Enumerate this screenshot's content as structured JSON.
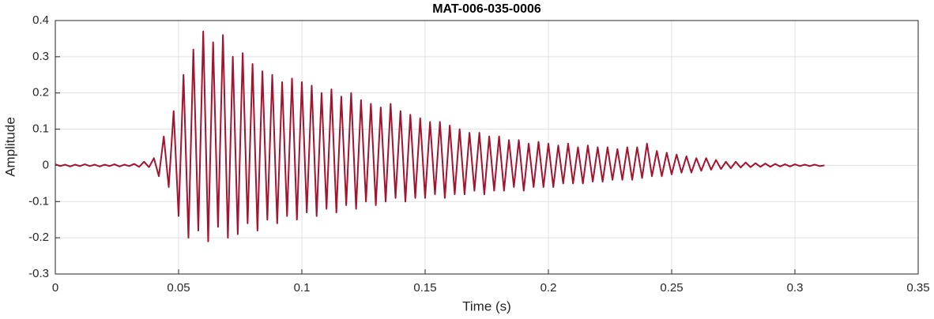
{
  "chart_data": {
    "type": "line",
    "title": "MAT-006-035-0006",
    "x_label": "Time (s)",
    "y_label": "Amplitude",
    "color": "#a2142f",
    "grid": true,
    "xlim": [
      0,
      0.35
    ],
    "xticks": [
      0,
      0.05,
      0.1,
      0.15,
      0.2,
      0.25,
      0.3,
      0.35
    ],
    "ylim": [
      -0.3,
      0.4
    ],
    "yticks": [
      -0.3,
      -0.2,
      -0.1,
      0,
      0.1,
      0.2,
      0.3,
      0.4
    ],
    "x": [
      0,
      0.002,
      0.004,
      0.006,
      0.008,
      0.01,
      0.012,
      0.014,
      0.016,
      0.018,
      0.02,
      0.022,
      0.024,
      0.026,
      0.028,
      0.03,
      0.032,
      0.034,
      0.036,
      0.038,
      0.04,
      0.042,
      0.044,
      0.046,
      0.048,
      0.05,
      0.052,
      0.054,
      0.056,
      0.058,
      0.06,
      0.062,
      0.064,
      0.066,
      0.068,
      0.07,
      0.072,
      0.074,
      0.076,
      0.078,
      0.08,
      0.082,
      0.084,
      0.086,
      0.088,
      0.09,
      0.092,
      0.094,
      0.096,
      0.098,
      0.1,
      0.102,
      0.104,
      0.106,
      0.108,
      0.11,
      0.112,
      0.114,
      0.116,
      0.118,
      0.12,
      0.122,
      0.124,
      0.126,
      0.128,
      0.13,
      0.132,
      0.134,
      0.136,
      0.138,
      0.14,
      0.142,
      0.144,
      0.146,
      0.148,
      0.15,
      0.152,
      0.154,
      0.156,
      0.158,
      0.16,
      0.162,
      0.164,
      0.166,
      0.168,
      0.17,
      0.172,
      0.174,
      0.176,
      0.178,
      0.18,
      0.182,
      0.184,
      0.186,
      0.188,
      0.19,
      0.192,
      0.194,
      0.196,
      0.198,
      0.2,
      0.202,
      0.204,
      0.206,
      0.208,
      0.21,
      0.212,
      0.214,
      0.216,
      0.218,
      0.22,
      0.222,
      0.224,
      0.226,
      0.228,
      0.23,
      0.232,
      0.234,
      0.236,
      0.238,
      0.24,
      0.242,
      0.244,
      0.246,
      0.248,
      0.25,
      0.252,
      0.254,
      0.256,
      0.258,
      0.26,
      0.262,
      0.264,
      0.266,
      0.268,
      0.27,
      0.272,
      0.274,
      0.276,
      0.278,
      0.28,
      0.282,
      0.284,
      0.286,
      0.288,
      0.29,
      0.292,
      0.294,
      0.296,
      0.298,
      0.3,
      0.302,
      0.304,
      0.306,
      0.308,
      0.31,
      0.312
    ],
    "values": [
      0.003,
      -0.002,
      0.002,
      -0.003,
      0.002,
      -0.002,
      0.003,
      -0.002,
      0.002,
      -0.003,
      0.002,
      -0.002,
      0.003,
      -0.003,
      0.002,
      -0.002,
      0.004,
      -0.004,
      0.01,
      -0.005,
      0.02,
      -0.03,
      0.08,
      -0.06,
      0.15,
      -0.14,
      0.25,
      -0.2,
      0.32,
      -0.18,
      0.37,
      -0.21,
      0.34,
      -0.17,
      0.36,
      -0.2,
      0.3,
      -0.19,
      0.31,
      -0.16,
      0.28,
      -0.18,
      0.26,
      -0.15,
      0.25,
      -0.16,
      0.23,
      -0.14,
      0.24,
      -0.15,
      0.23,
      -0.13,
      0.22,
      -0.14,
      0.2,
      -0.12,
      0.21,
      -0.13,
      0.19,
      -0.11,
      0.2,
      -0.12,
      0.18,
      -0.1,
      0.17,
      -0.11,
      0.16,
      -0.1,
      0.17,
      -0.09,
      0.15,
      -0.1,
      0.14,
      -0.09,
      0.13,
      -0.09,
      0.12,
      -0.08,
      0.12,
      -0.09,
      0.11,
      -0.08,
      0.1,
      -0.08,
      0.09,
      -0.07,
      0.09,
      -0.08,
      0.08,
      -0.07,
      0.08,
      -0.07,
      0.07,
      -0.06,
      0.07,
      -0.07,
      0.06,
      -0.06,
      0.065,
      -0.06,
      0.06,
      -0.06,
      0.055,
      -0.05,
      0.06,
      -0.05,
      0.05,
      -0.05,
      0.055,
      -0.045,
      0.05,
      -0.045,
      0.05,
      -0.04,
      0.045,
      -0.04,
      0.05,
      -0.04,
      0.05,
      -0.035,
      0.06,
      -0.03,
      0.04,
      -0.03,
      0.035,
      -0.025,
      0.03,
      -0.02,
      0.025,
      -0.02,
      0.02,
      -0.015,
      0.02,
      -0.012,
      0.015,
      -0.01,
      0.01,
      -0.008,
      0.01,
      -0.006,
      0.008,
      -0.005,
      0.006,
      -0.004,
      0.005,
      -0.004,
      0.004,
      -0.003,
      0.003,
      -0.003,
      0.003,
      -0.002,
      0.002,
      -0.002,
      0.002,
      -0.002,
      0
    ]
  }
}
